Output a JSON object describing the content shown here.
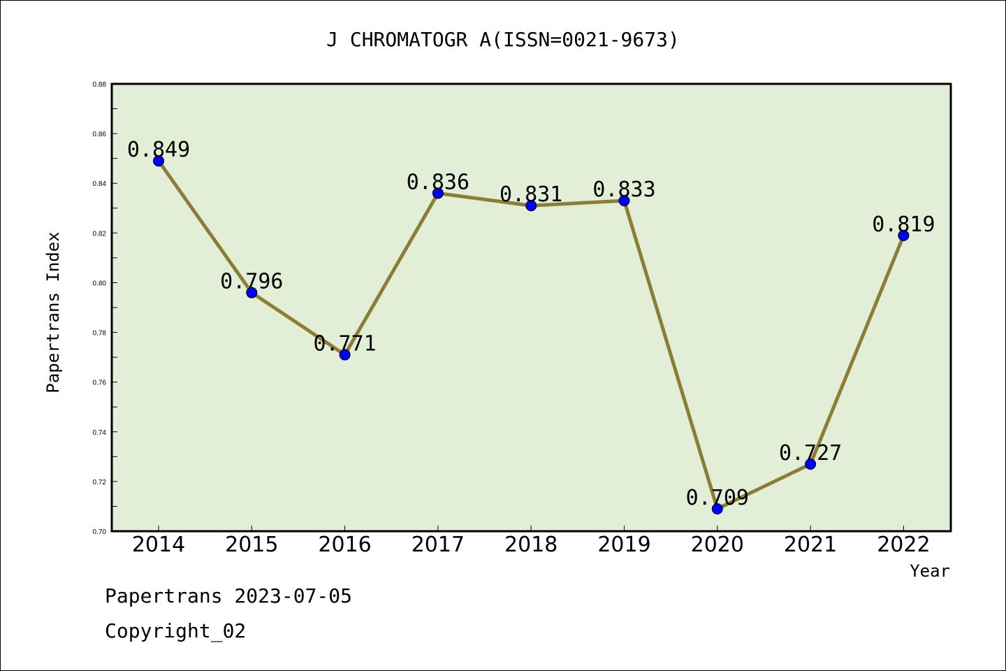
{
  "chart_data": {
    "type": "line",
    "title": "J CHROMATOGR A(ISSN=0021-9673)",
    "xlabel": "Year",
    "ylabel": "Papertrans Index",
    "categories": [
      "2014",
      "2015",
      "2016",
      "2017",
      "2018",
      "2019",
      "2020",
      "2021",
      "2022"
    ],
    "values": [
      0.849,
      0.796,
      0.771,
      0.836,
      0.831,
      0.833,
      0.709,
      0.727,
      0.819
    ],
    "data_labels": [
      "0.849",
      "0.796",
      "0.771",
      "0.836",
      "0.831",
      "0.833",
      "0.709",
      "0.727",
      "0.819"
    ],
    "ylim": [
      0.7,
      0.88
    ],
    "yticks": [
      "0.70",
      "0.72",
      "0.74",
      "0.76",
      "0.78",
      "0.80",
      "0.82",
      "0.84",
      "0.86",
      "0.88"
    ],
    "grid": false,
    "colors": {
      "plot_background": "#e2efd6",
      "line": "#8b7d35",
      "marker": "#0000ff"
    }
  },
  "footer": {
    "line1": "Papertrans 2023-07-05",
    "line2": "Copyright_02"
  }
}
